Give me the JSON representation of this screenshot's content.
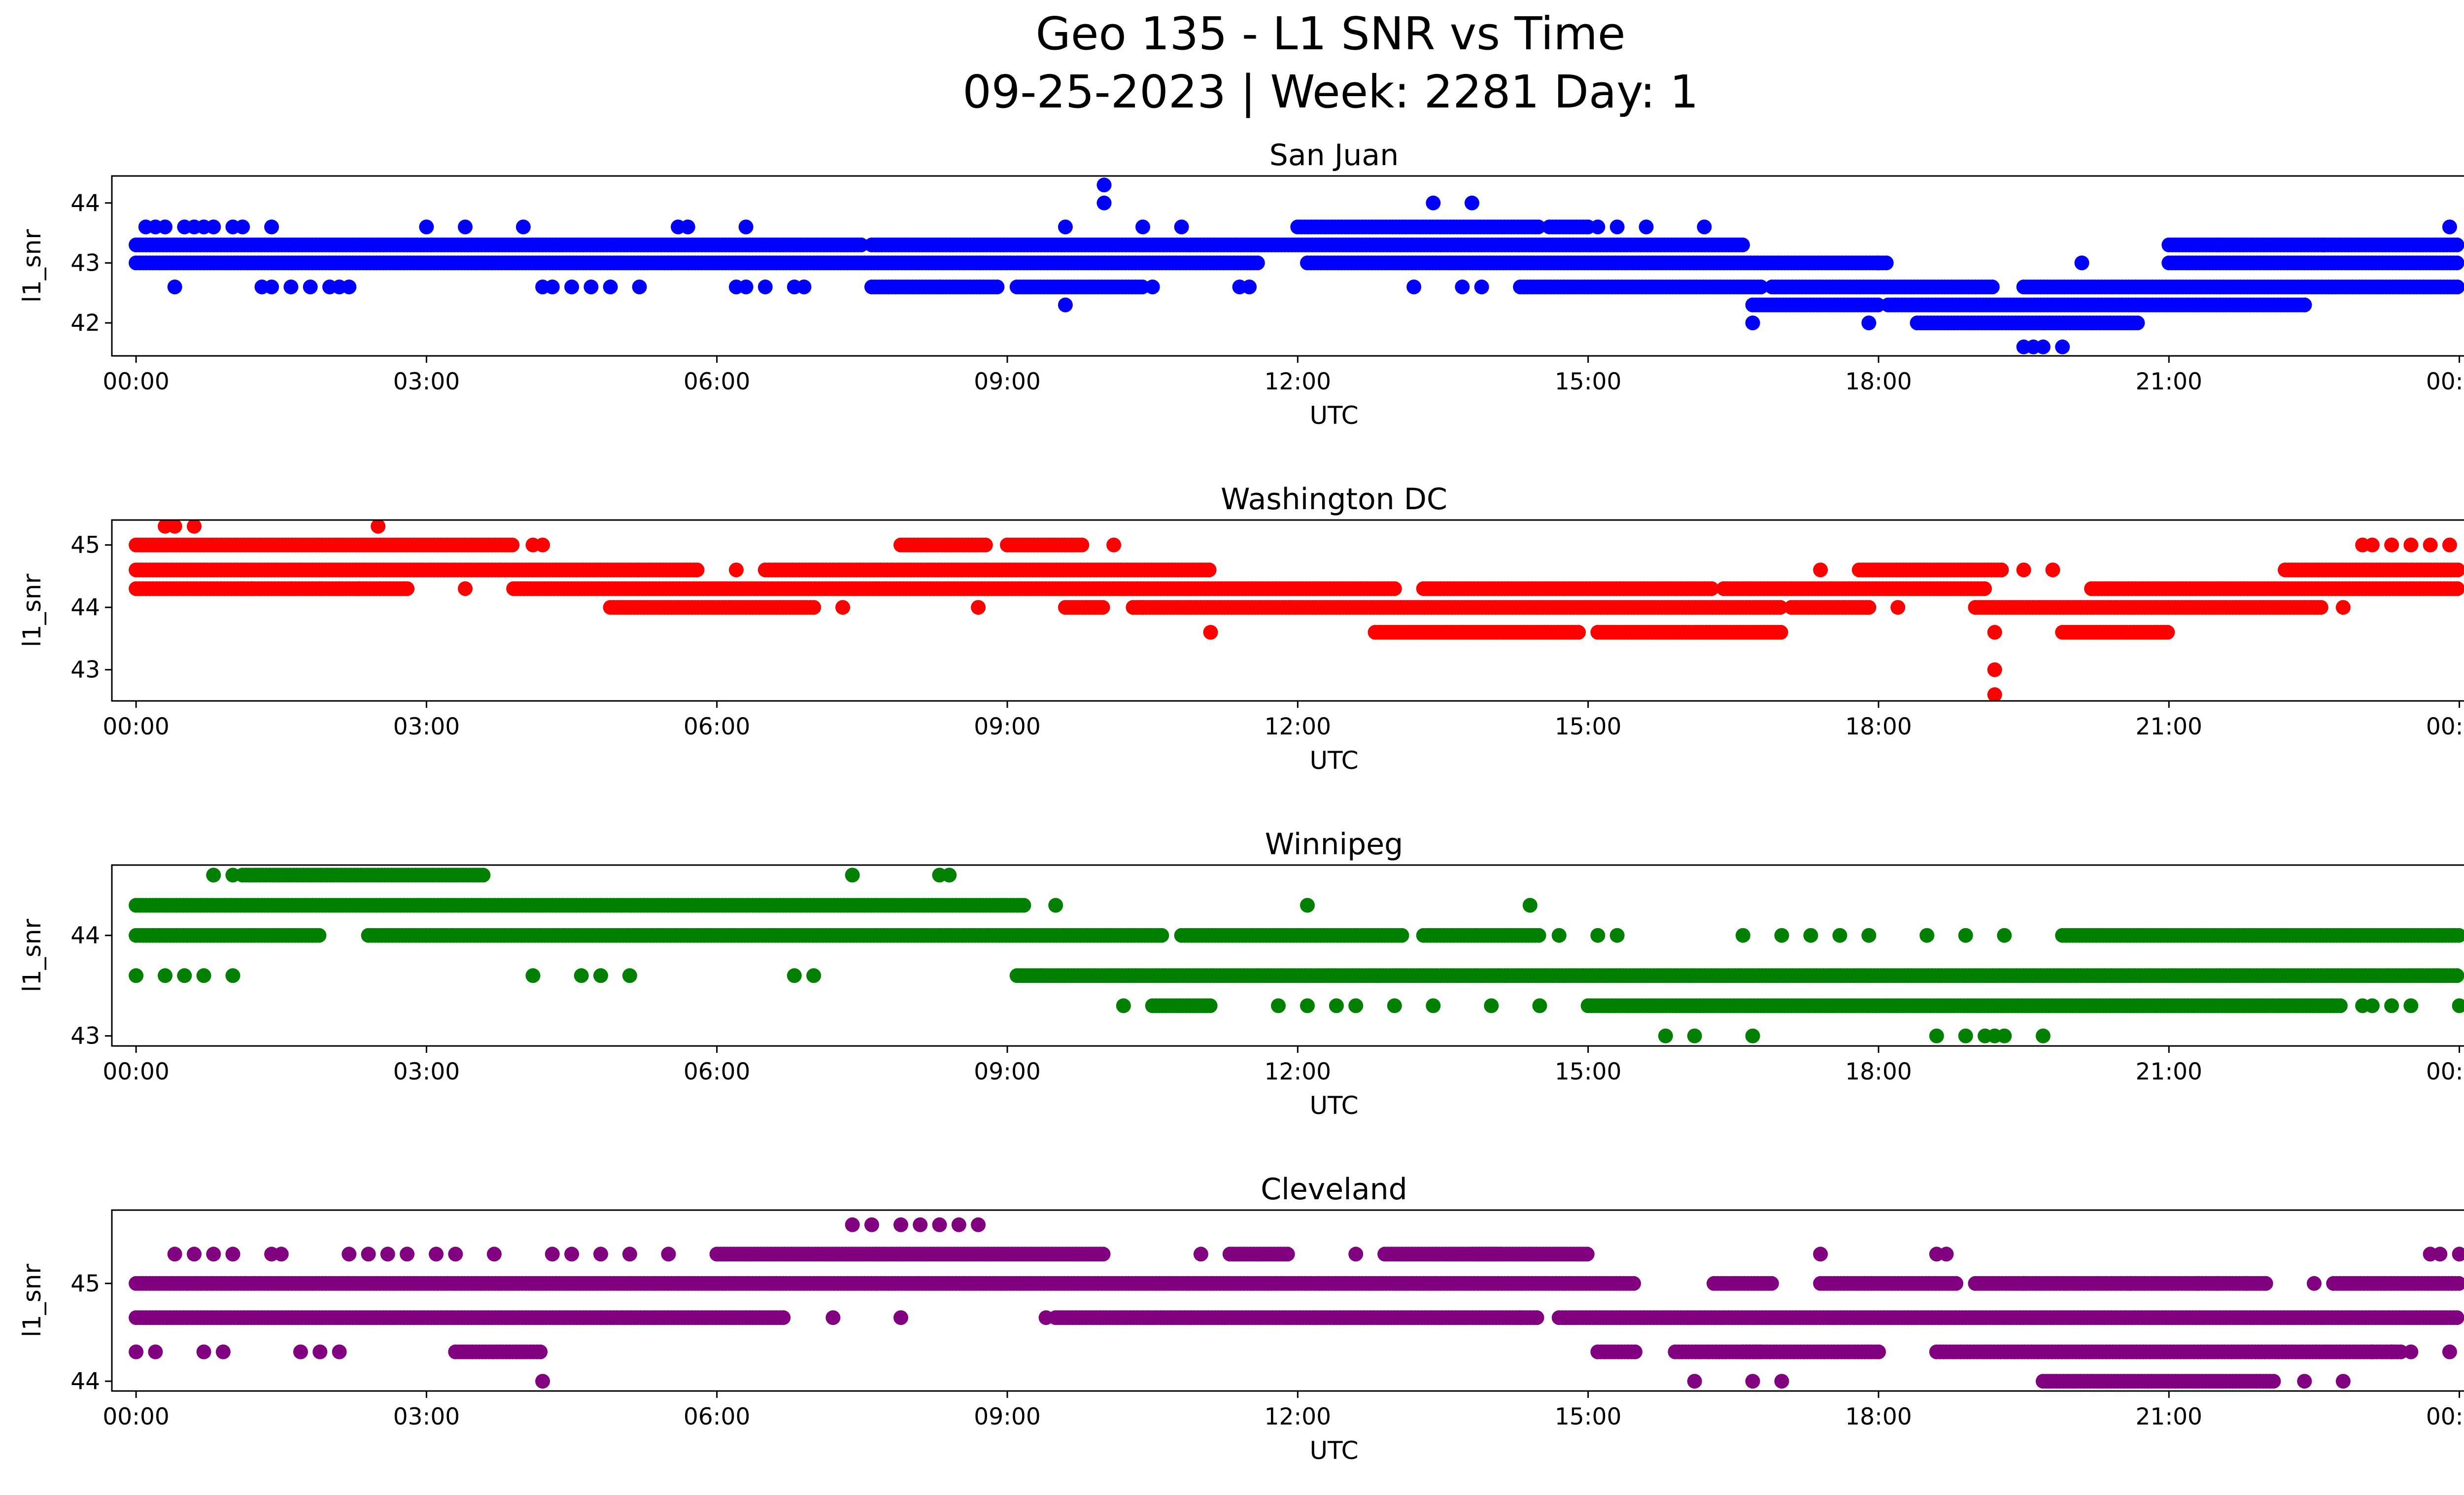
{
  "figure": {
    "title_line1": "Geo 135 - L1 SNR vs Time",
    "title_line2": "09-25-2023 | Week: 2281 Day: 1"
  },
  "chart_data": [
    {
      "type": "scatter",
      "title": "San Juan",
      "xlabel": "UTC",
      "ylabel": "l1_snr",
      "color": "#0000ff",
      "xlim": [
        -0.25,
        25.0
      ],
      "ylim": [
        41.45,
        44.45
      ],
      "xticks": [
        "00:00",
        "03:00",
        "06:00",
        "09:00",
        "12:00",
        "15:00",
        "18:00",
        "21:00",
        "00:00"
      ],
      "yticks": [
        42,
        43,
        44
      ],
      "bands": [
        {
          "y": 43.3,
          "segments": [
            [
              0,
              7.5
            ],
            [
              7.6,
              16.6
            ],
            [
              21.0,
              24.0
            ]
          ]
        },
        {
          "y": 43.0,
          "segments": [
            [
              0,
              11.6
            ],
            [
              12.1,
              13.6
            ],
            [
              13.6,
              18.1
            ],
            [
              21.0,
              24.0
            ]
          ]
        },
        {
          "y": 42.6,
          "segments": [
            [
              14.3,
              16.8
            ],
            [
              16.9,
              19.2
            ],
            [
              19.5,
              24.0
            ],
            [
              7.6,
              8.9
            ],
            [
              9.1,
              10.4
            ]
          ]
        },
        {
          "y": 42.3,
          "segments": [
            [
              16.7,
              18.0
            ],
            [
              18.1,
              21.0
            ],
            [
              21.0,
              22.4
            ]
          ]
        },
        {
          "y": 42.0,
          "segments": [
            [
              18.4,
              20.7
            ]
          ]
        },
        {
          "y": 43.6,
          "segments": [
            [
              12.0,
              14.5
            ],
            [
              14.6,
              15.0
            ]
          ]
        }
      ],
      "points": [
        [
          0.1,
          43.6
        ],
        [
          0.2,
          43.6
        ],
        [
          0.3,
          43.6
        ],
        [
          0.5,
          43.6
        ],
        [
          0.6,
          43.6
        ],
        [
          0.7,
          43.6
        ],
        [
          0.8,
          43.6
        ],
        [
          1.0,
          43.6
        ],
        [
          1.1,
          43.6
        ],
        [
          1.4,
          43.6
        ],
        [
          3.0,
          43.6
        ],
        [
          3.4,
          43.6
        ],
        [
          4.0,
          43.6
        ],
        [
          5.6,
          43.6
        ],
        [
          5.7,
          43.6
        ],
        [
          6.3,
          43.6
        ],
        [
          9.6,
          43.6
        ],
        [
          10.4,
          43.6
        ],
        [
          10.8,
          43.6
        ],
        [
          15.0,
          43.6
        ],
        [
          15.1,
          43.6
        ],
        [
          15.3,
          43.6
        ],
        [
          15.6,
          43.6
        ],
        [
          16.2,
          43.6
        ],
        [
          0.4,
          42.6
        ],
        [
          1.3,
          42.6
        ],
        [
          1.4,
          42.6
        ],
        [
          1.6,
          42.6
        ],
        [
          1.8,
          42.6
        ],
        [
          2.0,
          42.6
        ],
        [
          2.1,
          42.6
        ],
        [
          2.2,
          42.6
        ],
        [
          4.2,
          42.6
        ],
        [
          4.3,
          42.6
        ],
        [
          4.5,
          42.6
        ],
        [
          4.7,
          42.6
        ],
        [
          4.9,
          42.6
        ],
        [
          5.2,
          42.6
        ],
        [
          6.2,
          42.6
        ],
        [
          6.3,
          42.6
        ],
        [
          6.5,
          42.6
        ],
        [
          6.8,
          42.6
        ],
        [
          6.9,
          42.6
        ],
        [
          8.3,
          42.6
        ],
        [
          10.5,
          42.6
        ],
        [
          11.4,
          42.6
        ],
        [
          11.5,
          42.6
        ],
        [
          13.2,
          42.6
        ],
        [
          13.7,
          42.6
        ],
        [
          13.9,
          42.6
        ],
        [
          9.6,
          42.3
        ],
        [
          10.0,
          44.3
        ],
        [
          10.0,
          44.0
        ],
        [
          13.4,
          44.0
        ],
        [
          13.8,
          44.0
        ],
        [
          16.7,
          42.0
        ],
        [
          17.9,
          42.0
        ],
        [
          18.0,
          43.0
        ],
        [
          19.5,
          41.6
        ],
        [
          19.6,
          41.6
        ],
        [
          19.7,
          41.6
        ],
        [
          19.9,
          41.6
        ],
        [
          20.1,
          43.0
        ],
        [
          21.5,
          43.3
        ],
        [
          22.4,
          42.3
        ],
        [
          22.6,
          43.3
        ],
        [
          23.9,
          43.6
        ]
      ]
    },
    {
      "type": "scatter",
      "title": "Washington DC",
      "xlabel": "UTC",
      "ylabel": "l1_snr",
      "color": "#ff0000",
      "xlim": [
        -0.25,
        25.0
      ],
      "ylim": [
        42.5,
        45.4
      ],
      "xticks": [
        "00:00",
        "03:00",
        "06:00",
        "09:00",
        "12:00",
        "15:00",
        "18:00",
        "21:00",
        "00:00"
      ],
      "yticks": [
        43,
        44,
        45
      ],
      "bands": [
        {
          "y": 45.0,
          "segments": [
            [
              0,
              3.9
            ],
            [
              7.9,
              8.8
            ],
            [
              9.0,
              9.8
            ]
          ]
        },
        {
          "y": 44.6,
          "segments": [
            [
              0,
              5.2
            ],
            [
              5.2,
              5.8
            ],
            [
              6.5,
              11.1
            ],
            [
              17.8,
              19.3
            ],
            [
              22.2,
              24.0
            ]
          ]
        },
        {
          "y": 44.3,
          "segments": [
            [
              0,
              2.8
            ],
            [
              3.9,
              13.0
            ],
            [
              13.3,
              16.3
            ],
            [
              16.4,
              19.1
            ],
            [
              20.2,
              24.0
            ]
          ]
        },
        {
          "y": 44.0,
          "segments": [
            [
              4.9,
              7.0
            ],
            [
              9.6,
              10.0
            ],
            [
              10.3,
              17.0
            ],
            [
              17.1,
              17.9
            ],
            [
              19.0,
              22.6
            ]
          ]
        },
        {
          "y": 43.6,
          "segments": [
            [
              12.8,
              14.9
            ],
            [
              15.1,
              17.0
            ],
            [
              19.9,
              21.0
            ]
          ]
        }
      ],
      "points": [
        [
          0.3,
          45.3
        ],
        [
          0.4,
          45.3
        ],
        [
          0.6,
          45.3
        ],
        [
          2.5,
          45.3
        ],
        [
          1.1,
          44.3
        ],
        [
          1.2,
          44.3
        ],
        [
          1.6,
          44.3
        ],
        [
          1.9,
          44.3
        ],
        [
          2.1,
          44.3
        ],
        [
          2.3,
          44.3
        ],
        [
          3.4,
          44.3
        ],
        [
          4.1,
          45.0
        ],
        [
          4.2,
          45.0
        ],
        [
          6.2,
          44.6
        ],
        [
          7.3,
          44.0
        ],
        [
          8.7,
          44.0
        ],
        [
          10.1,
          45.0
        ],
        [
          10.4,
          44.0
        ],
        [
          11.1,
          43.6
        ],
        [
          17.4,
          44.6
        ],
        [
          17.9,
          44.0
        ],
        [
          18.2,
          44.0
        ],
        [
          19.2,
          43.6
        ],
        [
          19.2,
          43.0
        ],
        [
          19.2,
          42.6
        ],
        [
          19.5,
          44.6
        ],
        [
          19.8,
          44.6
        ],
        [
          22.8,
          44.0
        ],
        [
          23.0,
          45.0
        ],
        [
          23.1,
          45.0
        ],
        [
          23.3,
          45.0
        ],
        [
          23.5,
          45.0
        ],
        [
          23.7,
          45.0
        ],
        [
          23.9,
          45.0
        ]
      ]
    },
    {
      "type": "scatter",
      "title": "Winnipeg",
      "xlabel": "UTC",
      "ylabel": "l1_snr",
      "color": "#008000",
      "xlim": [
        -0.25,
        25.0
      ],
      "ylim": [
        42.9,
        44.7
      ],
      "xticks": [
        "00:00",
        "03:00",
        "06:00",
        "09:00",
        "12:00",
        "15:00",
        "18:00",
        "21:00",
        "00:00"
      ],
      "yticks": [
        43,
        44
      ],
      "bands": [
        {
          "y": 44.6,
          "segments": [
            [
              1.1,
              3.6
            ]
          ]
        },
        {
          "y": 44.3,
          "segments": [
            [
              0,
              9.2
            ]
          ]
        },
        {
          "y": 44.0,
          "segments": [
            [
              0,
              1.9
            ],
            [
              2.4,
              3.0
            ],
            [
              3.0,
              10.6
            ],
            [
              10.8,
              13.1
            ],
            [
              13.3,
              14.5
            ],
            [
              19.9,
              24.0
            ]
          ]
        },
        {
          "y": 43.6,
          "segments": [
            [
              9.1,
              24.0
            ]
          ]
        },
        {
          "y": 43.3,
          "segments": [
            [
              10.5,
              11.1
            ],
            [
              15.0,
              22.8
            ]
          ]
        }
      ],
      "points": [
        [
          0.8,
          44.6
        ],
        [
          1.0,
          44.6
        ],
        [
          7.4,
          44.6
        ],
        [
          8.3,
          44.6
        ],
        [
          8.4,
          44.6
        ],
        [
          9.5,
          44.3
        ],
        [
          12.1,
          44.3
        ],
        [
          14.4,
          44.3
        ],
        [
          0.0,
          43.6
        ],
        [
          0.3,
          43.6
        ],
        [
          0.5,
          43.6
        ],
        [
          0.7,
          43.6
        ],
        [
          1.0,
          43.6
        ],
        [
          4.1,
          43.6
        ],
        [
          4.6,
          43.6
        ],
        [
          4.8,
          43.6
        ],
        [
          5.1,
          43.6
        ],
        [
          6.8,
          43.6
        ],
        [
          7.0,
          43.6
        ],
        [
          10.2,
          43.3
        ],
        [
          11.8,
          43.3
        ],
        [
          12.1,
          43.3
        ],
        [
          12.4,
          43.3
        ],
        [
          12.6,
          43.3
        ],
        [
          13.0,
          43.3
        ],
        [
          13.4,
          43.3
        ],
        [
          14.0,
          43.3
        ],
        [
          14.5,
          43.3
        ],
        [
          23.0,
          43.3
        ],
        [
          23.1,
          43.3
        ],
        [
          23.3,
          43.3
        ],
        [
          23.5,
          43.3
        ],
        [
          24.0,
          43.3
        ],
        [
          14.7,
          44.0
        ],
        [
          15.1,
          44.0
        ],
        [
          15.3,
          44.0
        ],
        [
          16.6,
          44.0
        ],
        [
          17.0,
          44.0
        ],
        [
          17.3,
          44.0
        ],
        [
          17.6,
          44.0
        ],
        [
          17.9,
          44.0
        ],
        [
          18.5,
          44.0
        ],
        [
          18.9,
          44.0
        ],
        [
          19.3,
          44.0
        ],
        [
          15.8,
          43.0
        ],
        [
          16.1,
          43.0
        ],
        [
          16.7,
          43.0
        ],
        [
          18.6,
          43.0
        ],
        [
          18.9,
          43.0
        ],
        [
          19.1,
          43.0
        ],
        [
          19.2,
          43.0
        ],
        [
          19.3,
          43.0
        ],
        [
          19.7,
          43.0
        ]
      ]
    },
    {
      "type": "scatter",
      "title": "Cleveland",
      "xlabel": "UTC",
      "ylabel": "l1_snr",
      "color": "#800080",
      "xlim": [
        -0.25,
        25.0
      ],
      "ylim": [
        43.9,
        45.75
      ],
      "xticks": [
        "00:00",
        "03:00",
        "06:00",
        "09:00",
        "12:00",
        "15:00",
        "18:00",
        "21:00",
        "00:00"
      ],
      "yticks": [
        44,
        45
      ],
      "bands": [
        {
          "y": 45.0,
          "segments": [
            [
              0,
              15.5
            ],
            [
              16.3,
              16.9
            ],
            [
              17.4,
              18.8
            ],
            [
              19.0,
              22.0
            ],
            [
              22.7,
              24.0
            ]
          ]
        },
        {
          "y": 44.65,
          "segments": [
            [
              0,
              6.7
            ],
            [
              9.5,
              14.5
            ],
            [
              14.7,
              24.0
            ]
          ]
        },
        {
          "y": 44.3,
          "segments": [
            [
              3.3,
              4.2
            ],
            [
              15.1,
              15.5
            ],
            [
              15.9,
              16.8
            ],
            [
              16.6,
              18.0
            ],
            [
              18.6,
              23.4
            ]
          ]
        },
        {
          "y": 45.3,
          "segments": [
            [
              6.0,
              10.0
            ],
            [
              11.3,
              11.9
            ],
            [
              12.9,
              14.1
            ],
            [
              13.8,
              15.0
            ]
          ]
        },
        {
          "y": 44.0,
          "segments": [
            [
              19.7,
              22.1
            ]
          ]
        }
      ],
      "points": [
        [
          0.0,
          44.3
        ],
        [
          0.2,
          44.3
        ],
        [
          0.7,
          44.3
        ],
        [
          0.9,
          44.3
        ],
        [
          1.7,
          44.3
        ],
        [
          1.9,
          44.3
        ],
        [
          2.1,
          44.3
        ],
        [
          0.4,
          45.3
        ],
        [
          0.6,
          45.3
        ],
        [
          0.8,
          45.3
        ],
        [
          1.0,
          45.3
        ],
        [
          1.4,
          45.3
        ],
        [
          1.5,
          45.3
        ],
        [
          2.2,
          45.3
        ],
        [
          2.4,
          45.3
        ],
        [
          2.6,
          45.3
        ],
        [
          2.8,
          45.3
        ],
        [
          3.1,
          45.3
        ],
        [
          3.3,
          45.3
        ],
        [
          3.7,
          45.3
        ],
        [
          4.3,
          45.3
        ],
        [
          4.5,
          45.3
        ],
        [
          4.8,
          45.3
        ],
        [
          5.1,
          45.3
        ],
        [
          5.5,
          45.3
        ],
        [
          11.0,
          45.3
        ],
        [
          12.6,
          45.3
        ],
        [
          4.2,
          44.0
        ],
        [
          7.2,
          44.65
        ],
        [
          7.9,
          44.65
        ],
        [
          9.4,
          44.65
        ],
        [
          14.3,
          44.65
        ],
        [
          7.4,
          45.6
        ],
        [
          7.6,
          45.6
        ],
        [
          7.9,
          45.6
        ],
        [
          8.1,
          45.6
        ],
        [
          8.3,
          45.6
        ],
        [
          8.5,
          45.6
        ],
        [
          8.7,
          45.6
        ],
        [
          16.1,
          44.0
        ],
        [
          16.7,
          44.0
        ],
        [
          17.0,
          44.0
        ],
        [
          17.4,
          45.3
        ],
        [
          18.6,
          45.3
        ],
        [
          18.7,
          45.3
        ],
        [
          19.5,
          45.0
        ],
        [
          20.6,
          45.0
        ],
        [
          21.3,
          45.0
        ],
        [
          21.5,
          45.0
        ],
        [
          21.8,
          45.0
        ],
        [
          22.0,
          45.0
        ],
        [
          22.5,
          45.0
        ],
        [
          22.4,
          44.0
        ],
        [
          22.8,
          44.0
        ],
        [
          23.1,
          44.3
        ],
        [
          23.3,
          44.3
        ],
        [
          23.5,
          44.3
        ],
        [
          23.9,
          44.3
        ],
        [
          23.7,
          45.3
        ],
        [
          23.8,
          45.3
        ],
        [
          24.0,
          45.3
        ]
      ]
    }
  ]
}
